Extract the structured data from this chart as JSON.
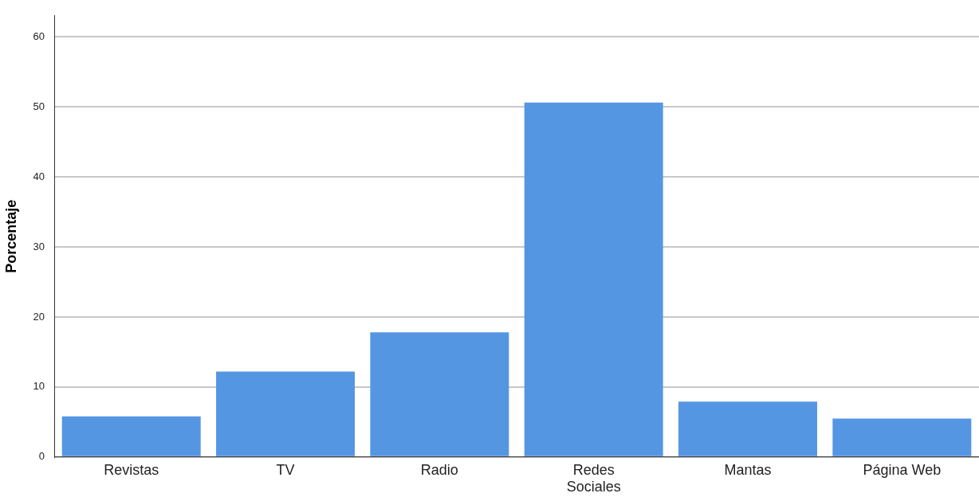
{
  "chart_data": {
    "type": "bar",
    "ylabel": "Porcentaje",
    "categories": [
      "Revistas",
      "TV",
      "Radio",
      "Redes Sociales",
      "Mantas",
      "Página Web"
    ],
    "values": [
      5.8,
      12.2,
      17.8,
      50.6,
      7.9,
      5.5
    ],
    "color": "#5596e3",
    "ylim": [
      0,
      63
    ],
    "yticks": [
      0,
      10,
      20,
      30,
      40,
      50,
      60
    ],
    "grid": "y",
    "legend": false
  }
}
